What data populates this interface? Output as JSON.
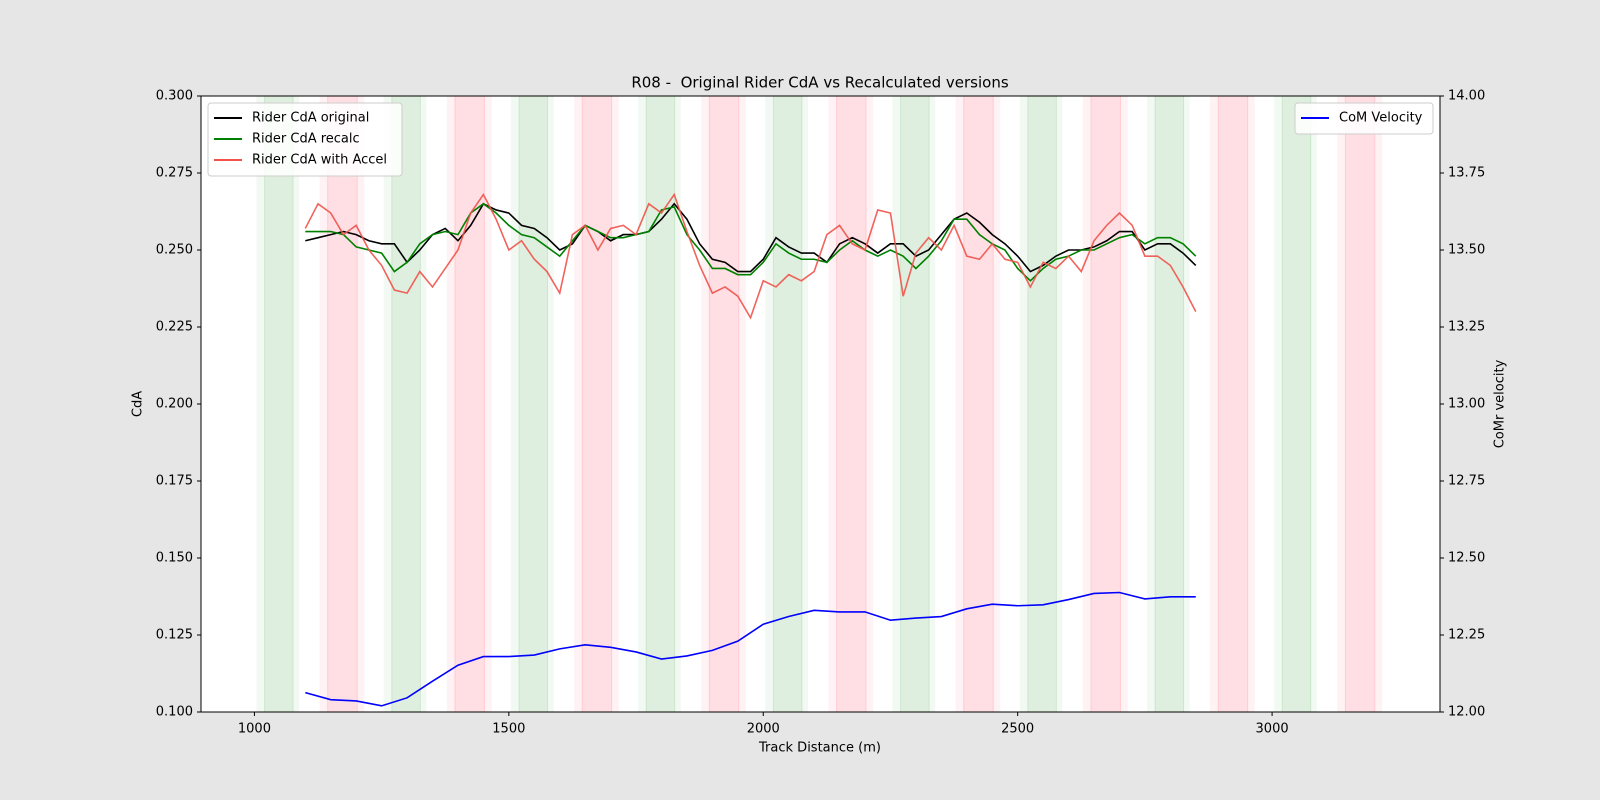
{
  "chart_data": {
    "type": "line",
    "title": "R08 -  Original Rider CdA vs Recalculated versions",
    "x_label": "Track Distance (m)",
    "y_label": "CdA",
    "y2_label": "CoMr velocity",
    "xlim": [
      895,
      3330
    ],
    "ylim": [
      0.1,
      0.3
    ],
    "y2lim": [
      12,
      14
    ],
    "xticks": [
      1000,
      1500,
      2000,
      2500,
      3000
    ],
    "yticks": [
      {
        "value": 0.1,
        "label": "0.100"
      },
      {
        "value": 0.125,
        "label": "0.125"
      },
      {
        "value": 0.15,
        "label": "0.150"
      },
      {
        "value": 0.175,
        "label": "0.175"
      },
      {
        "value": 0.2,
        "label": "0.200"
      },
      {
        "value": 0.225,
        "label": "0.225"
      },
      {
        "value": 0.25,
        "label": "0.250"
      },
      {
        "value": 0.275,
        "label": "0.275"
      },
      {
        "value": 0.3,
        "label": "0.300"
      }
    ],
    "y2ticks": [
      {
        "value": 12,
        "label": "12.00"
      },
      {
        "value": 12.25,
        "label": "12.25"
      },
      {
        "value": 12.5,
        "label": "12.50"
      },
      {
        "value": 12.75,
        "label": "12.75"
      },
      {
        "value": 13,
        "label": "13.00"
      },
      {
        "value": 13.25,
        "label": "13.25"
      },
      {
        "value": 13.5,
        "label": "13.50"
      },
      {
        "value": 13.75,
        "label": "13.75"
      },
      {
        "value": 14,
        "label": "14.00"
      }
    ],
    "legend": "upper left",
    "legend2": "upper right",
    "shaded_regions": [
      {
        "color": "#008000",
        "outer": [
          1004,
          1088
        ],
        "inner": [
          1020,
          1076
        ]
      },
      {
        "color": "#ff0020",
        "outer": [
          1128,
          1216
        ],
        "inner": [
          1144,
          1202
        ]
      },
      {
        "color": "#008000",
        "outer": [
          1254,
          1338
        ],
        "inner": [
          1270,
          1326
        ]
      },
      {
        "color": "#ff0020",
        "outer": [
          1378,
          1466
        ],
        "inner": [
          1394,
          1452
        ]
      },
      {
        "color": "#008000",
        "outer": [
          1504,
          1588
        ],
        "inner": [
          1520,
          1576
        ]
      },
      {
        "color": "#ff0020",
        "outer": [
          1628,
          1716
        ],
        "inner": [
          1644,
          1702
        ]
      },
      {
        "color": "#008000",
        "outer": [
          1754,
          1838
        ],
        "inner": [
          1770,
          1826
        ]
      },
      {
        "color": "#ff0020",
        "outer": [
          1878,
          1966
        ],
        "inner": [
          1894,
          1952
        ]
      },
      {
        "color": "#008000",
        "outer": [
          2004,
          2088
        ],
        "inner": [
          2020,
          2076
        ]
      },
      {
        "color": "#ff0020",
        "outer": [
          2128,
          2216
        ],
        "inner": [
          2144,
          2202
        ]
      },
      {
        "color": "#008000",
        "outer": [
          2254,
          2338
        ],
        "inner": [
          2270,
          2326
        ]
      },
      {
        "color": "#ff0020",
        "outer": [
          2378,
          2466
        ],
        "inner": [
          2394,
          2452
        ]
      },
      {
        "color": "#008000",
        "outer": [
          2504,
          2588
        ],
        "inner": [
          2520,
          2576
        ]
      },
      {
        "color": "#ff0020",
        "outer": [
          2628,
          2716
        ],
        "inner": [
          2644,
          2702
        ]
      },
      {
        "color": "#008000",
        "outer": [
          2754,
          2838
        ],
        "inner": [
          2770,
          2826
        ]
      },
      {
        "color": "#ff0020",
        "outer": [
          2878,
          2966
        ],
        "inner": [
          2894,
          2952
        ]
      },
      {
        "color": "#008000",
        "outer": [
          3004,
          3088
        ],
        "inner": [
          3020,
          3076
        ]
      },
      {
        "color": "#ff0020",
        "outer": [
          3128,
          3216
        ],
        "inner": [
          3144,
          3202
        ]
      }
    ],
    "x": [
      1100,
      1125,
      1150,
      1175,
      1200,
      1225,
      1250,
      1275,
      1300,
      1325,
      1350,
      1375,
      1400,
      1425,
      1450,
      1475,
      1500,
      1525,
      1550,
      1575,
      1600,
      1625,
      1650,
      1675,
      1700,
      1725,
      1750,
      1775,
      1800,
      1825,
      1850,
      1875,
      1900,
      1925,
      1950,
      1975,
      2000,
      2025,
      2050,
      2075,
      2100,
      2125,
      2150,
      2175,
      2200,
      2225,
      2250,
      2275,
      2300,
      2325,
      2350,
      2375,
      2400,
      2425,
      2450,
      2475,
      2500,
      2525,
      2550,
      2575,
      2600,
      2625,
      2650,
      2675,
      2700,
      2725,
      2750,
      2775,
      2800,
      2825,
      2850
    ],
    "series": [
      {
        "name": "Rider CdA original",
        "color": "#000000",
        "values": [
          0.253,
          0.254,
          0.255,
          0.256,
          0.255,
          0.253,
          0.252,
          0.252,
          0.246,
          0.25,
          0.255,
          0.257,
          0.253,
          0.258,
          0.265,
          0.263,
          0.262,
          0.258,
          0.257,
          0.254,
          0.25,
          0.252,
          0.258,
          0.256,
          0.253,
          0.255,
          0.255,
          0.256,
          0.26,
          0.265,
          0.26,
          0.252,
          0.247,
          0.246,
          0.243,
          0.243,
          0.247,
          0.254,
          0.251,
          0.249,
          0.249,
          0.246,
          0.252,
          0.254,
          0.252,
          0.249,
          0.252,
          0.252,
          0.248,
          0.25,
          0.255,
          0.26,
          0.262,
          0.259,
          0.255,
          0.252,
          0.248,
          0.243,
          0.245,
          0.248,
          0.25,
          0.25,
          0.251,
          0.253,
          0.256,
          0.256,
          0.25,
          0.252,
          0.252,
          0.249,
          0.245
        ]
      },
      {
        "name": "Rider CdA recalc",
        "color": "#008000",
        "values": [
          0.256,
          0.256,
          0.256,
          0.255,
          0.251,
          0.25,
          0.249,
          0.243,
          0.246,
          0.252,
          0.255,
          0.256,
          0.255,
          0.262,
          0.265,
          0.262,
          0.258,
          0.255,
          0.254,
          0.251,
          0.248,
          0.253,
          0.258,
          0.256,
          0.254,
          0.254,
          0.255,
          0.256,
          0.263,
          0.264,
          0.255,
          0.25,
          0.244,
          0.244,
          0.242,
          0.242,
          0.246,
          0.252,
          0.249,
          0.247,
          0.247,
          0.246,
          0.25,
          0.253,
          0.25,
          0.248,
          0.25,
          0.248,
          0.244,
          0.248,
          0.253,
          0.26,
          0.26,
          0.255,
          0.252,
          0.25,
          0.244,
          0.24,
          0.244,
          0.247,
          0.248,
          0.25,
          0.25,
          0.252,
          0.254,
          0.255,
          0.252,
          0.254,
          0.254,
          0.252,
          0.248
        ]
      },
      {
        "name": "Rider CdA with Accel",
        "color": "#f0524a",
        "values": [
          0.257,
          0.265,
          0.262,
          0.255,
          0.258,
          0.25,
          0.245,
          0.237,
          0.236,
          0.243,
          0.238,
          0.244,
          0.25,
          0.262,
          0.268,
          0.26,
          0.25,
          0.253,
          0.247,
          0.243,
          0.236,
          0.255,
          0.258,
          0.25,
          0.257,
          0.258,
          0.255,
          0.265,
          0.262,
          0.268,
          0.256,
          0.245,
          0.236,
          0.238,
          0.235,
          0.228,
          0.24,
          0.238,
          0.242,
          0.24,
          0.243,
          0.255,
          0.258,
          0.252,
          0.25,
          0.263,
          0.262,
          0.235,
          0.249,
          0.254,
          0.25,
          0.258,
          0.248,
          0.247,
          0.252,
          0.247,
          0.246,
          0.238,
          0.246,
          0.244,
          0.248,
          0.243,
          0.253,
          0.258,
          0.262,
          0.258,
          0.248,
          0.248,
          0.245,
          0.238,
          0.23
        ]
      },
      {
        "name": "CoM Velocity",
        "color": "#0000ff",
        "axis": "y2",
        "x": [
          1100,
          1150,
          1200,
          1250,
          1300,
          1350,
          1400,
          1450,
          1500,
          1550,
          1600,
          1650,
          1700,
          1750,
          1800,
          1850,
          1900,
          1950,
          2000,
          2050,
          2100,
          2150,
          2200,
          2250,
          2300,
          2350,
          2400,
          2450,
          2500,
          2550,
          2600,
          2650,
          2700,
          2750,
          2800,
          2850
        ],
        "values": [
          12.063,
          12.04,
          12.036,
          12.02,
          12.046,
          12.1,
          12.152,
          12.18,
          12.18,
          12.185,
          12.205,
          12.218,
          12.21,
          12.195,
          12.172,
          12.182,
          12.2,
          12.23,
          12.285,
          12.31,
          12.33,
          12.325,
          12.325,
          12.298,
          12.305,
          12.31,
          12.335,
          12.35,
          12.345,
          12.348,
          12.365,
          12.385,
          12.388,
          12.367,
          12.374,
          12.374
        ]
      }
    ]
  }
}
